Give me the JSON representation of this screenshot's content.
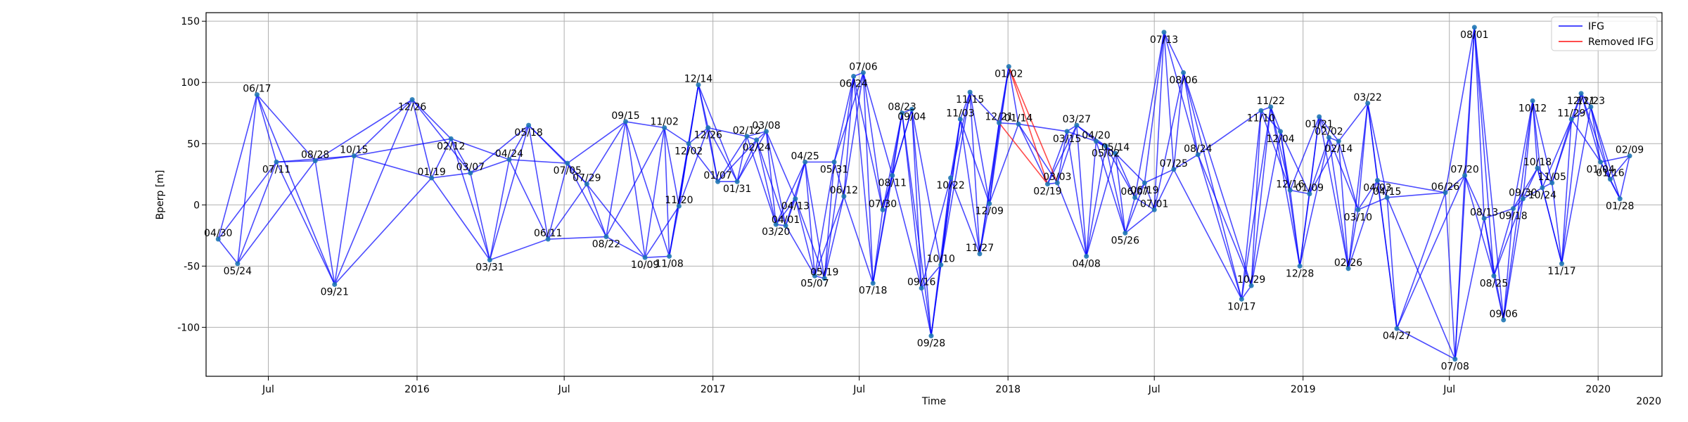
{
  "chart_data": {
    "type": "line",
    "xlabel": "Time",
    "ylabel": "Bperp [m]",
    "grid": true,
    "legend_placement": "top-right",
    "xlim": [
      "2015-04-15",
      "2020-03-20"
    ],
    "ylim": [
      -140,
      157
    ],
    "yticks": [
      -100,
      -50,
      0,
      50,
      100,
      150
    ],
    "xticks": [
      {
        "date": "2015-07-01",
        "label": "Jul"
      },
      {
        "date": "2016-01-01",
        "label": "2016"
      },
      {
        "date": "2016-07-01",
        "label": "Jul"
      },
      {
        "date": "2017-01-01",
        "label": "2017"
      },
      {
        "date": "2017-07-01",
        "label": "Jul"
      },
      {
        "date": "2018-01-01",
        "label": "2018"
      },
      {
        "date": "2018-07-01",
        "label": "Jul"
      },
      {
        "date": "2019-01-01",
        "label": "2019"
      },
      {
        "date": "2019-07-01",
        "label": "Jul"
      },
      {
        "date": "2020-01-01",
        "label": "2020"
      }
    ],
    "axis_offset_label": "2020",
    "series": [
      {
        "name": "IFG",
        "color": "#0000ff"
      },
      {
        "name": "Removed IFG",
        "color": "#ff0000"
      }
    ],
    "acquisitions": [
      {
        "date": "2015-04-30",
        "label": "04/30",
        "bperp": -28
      },
      {
        "date": "2015-05-24",
        "label": "05/24",
        "bperp": -48
      },
      {
        "date": "2015-06-17",
        "label": "06/17",
        "bperp": 90
      },
      {
        "date": "2015-07-11",
        "label": "07/11",
        "bperp": 35
      },
      {
        "date": "2015-08-28",
        "label": "08/28",
        "bperp": 36
      },
      {
        "date": "2015-09-21",
        "label": "09/21",
        "bperp": -65
      },
      {
        "date": "2015-10-15",
        "label": "10/15",
        "bperp": 40
      },
      {
        "date": "2015-12-26",
        "label": "12/26",
        "bperp": 86
      },
      {
        "date": "2016-01-19",
        "label": "01/19",
        "bperp": 22
      },
      {
        "date": "2016-02-12",
        "label": "02/12",
        "bperp": 54
      },
      {
        "date": "2016-03-07",
        "label": "03/07",
        "bperp": 26
      },
      {
        "date": "2016-03-31",
        "label": "03/31",
        "bperp": -45
      },
      {
        "date": "2016-04-24",
        "label": "04/24",
        "bperp": 37
      },
      {
        "date": "2016-05-18",
        "label": "05/18",
        "bperp": 65
      },
      {
        "date": "2016-06-11",
        "label": "06/11",
        "bperp": -28
      },
      {
        "date": "2016-07-05",
        "label": "07/05",
        "bperp": 34
      },
      {
        "date": "2016-07-29",
        "label": "07/29",
        "bperp": 17
      },
      {
        "date": "2016-08-22",
        "label": "08/22",
        "bperp": -26
      },
      {
        "date": "2016-09-15",
        "label": "09/15",
        "bperp": 68
      },
      {
        "date": "2016-10-09",
        "label": "10/09",
        "bperp": -43
      },
      {
        "date": "2016-11-02",
        "label": "11/02",
        "bperp": 63
      },
      {
        "date": "2016-11-08",
        "label": "11/08",
        "bperp": -42
      },
      {
        "date": "2016-11-20",
        "label": "11/20",
        "bperp": -1
      },
      {
        "date": "2016-12-02",
        "label": "12/02",
        "bperp": 50
      },
      {
        "date": "2016-12-14",
        "label": "12/14",
        "bperp": 98
      },
      {
        "date": "2016-12-26",
        "label": "12/26",
        "bperp": 63
      },
      {
        "date": "2017-01-07",
        "label": "01/07",
        "bperp": 19
      },
      {
        "date": "2017-01-31",
        "label": "01/31",
        "bperp": 19
      },
      {
        "date": "2017-02-12",
        "label": "02/12",
        "bperp": 56
      },
      {
        "date": "2017-02-24",
        "label": "02/24",
        "bperp": 53
      },
      {
        "date": "2017-03-08",
        "label": "03/08",
        "bperp": 60
      },
      {
        "date": "2017-03-20",
        "label": "03/20",
        "bperp": -16
      },
      {
        "date": "2017-04-01",
        "label": "04/01",
        "bperp": -17
      },
      {
        "date": "2017-04-13",
        "label": "04/13",
        "bperp": 5
      },
      {
        "date": "2017-04-25",
        "label": "04/25",
        "bperp": 35
      },
      {
        "date": "2017-05-07",
        "label": "05/07",
        "bperp": -58
      },
      {
        "date": "2017-05-19",
        "label": "05/19",
        "bperp": -60
      },
      {
        "date": "2017-05-31",
        "label": "05/31",
        "bperp": 35
      },
      {
        "date": "2017-06-12",
        "label": "06/12",
        "bperp": 7
      },
      {
        "date": "2017-06-24",
        "label": "06/24",
        "bperp": 105
      },
      {
        "date": "2017-07-06",
        "label": "07/06",
        "bperp": 108
      },
      {
        "date": "2017-07-18",
        "label": "07/18",
        "bperp": -64
      },
      {
        "date": "2017-07-30",
        "label": "07/30",
        "bperp": -4
      },
      {
        "date": "2017-08-11",
        "label": "08/11",
        "bperp": 24
      },
      {
        "date": "2017-08-23",
        "label": "08/23",
        "bperp": 75
      },
      {
        "date": "2017-09-04",
        "label": "09/04",
        "bperp": 78
      },
      {
        "date": "2017-09-16",
        "label": "09/16",
        "bperp": -68
      },
      {
        "date": "2017-09-28",
        "label": "09/28",
        "bperp": -107
      },
      {
        "date": "2017-10-10",
        "label": "10/10",
        "bperp": -49
      },
      {
        "date": "2017-10-22",
        "label": "10/22",
        "bperp": 22
      },
      {
        "date": "2017-11-03",
        "label": "11/03",
        "bperp": 70
      },
      {
        "date": "2017-11-15",
        "label": "11/15",
        "bperp": 92
      },
      {
        "date": "2017-11-27",
        "label": "11/27",
        "bperp": -40
      },
      {
        "date": "2017-12-09",
        "label": "12/09",
        "bperp": 1
      },
      {
        "date": "2017-12-21",
        "label": "12/21",
        "bperp": 67
      },
      {
        "date": "2018-01-02",
        "label": "01/02",
        "bperp": 113
      },
      {
        "date": "2018-01-14",
        "label": "01/14",
        "bperp": 66
      },
      {
        "date": "2018-02-19",
        "label": "02/19",
        "bperp": 17
      },
      {
        "date": "2018-03-03",
        "label": "03/03",
        "bperp": 18
      },
      {
        "date": "2018-03-15",
        "label": "03/15",
        "bperp": 60
      },
      {
        "date": "2018-03-27",
        "label": "03/27",
        "bperp": 65
      },
      {
        "date": "2018-04-08",
        "label": "04/08",
        "bperp": -42
      },
      {
        "date": "2018-04-20",
        "label": "04/20",
        "bperp": 52
      },
      {
        "date": "2018-05-02",
        "label": "05/02",
        "bperp": 48
      },
      {
        "date": "2018-05-14",
        "label": "05/14",
        "bperp": 42
      },
      {
        "date": "2018-05-26",
        "label": "05/26",
        "bperp": -23
      },
      {
        "date": "2018-06-07",
        "label": "06/07",
        "bperp": 6
      },
      {
        "date": "2018-06-19",
        "label": "06/19",
        "bperp": 18
      },
      {
        "date": "2018-07-01",
        "label": "07/01",
        "bperp": -4
      },
      {
        "date": "2018-07-13",
        "label": "07/13",
        "bperp": 141
      },
      {
        "date": "2018-07-25",
        "label": "07/25",
        "bperp": 29
      },
      {
        "date": "2018-08-06",
        "label": "08/06",
        "bperp": 108
      },
      {
        "date": "2018-08-24",
        "label": "08/24",
        "bperp": 41
      },
      {
        "date": "2018-10-17",
        "label": "10/17",
        "bperp": -77
      },
      {
        "date": "2018-10-29",
        "label": "10/29",
        "bperp": -66
      },
      {
        "date": "2018-11-10",
        "label": "11/10",
        "bperp": 77
      },
      {
        "date": "2018-11-22",
        "label": "11/22",
        "bperp": 80
      },
      {
        "date": "2018-12-04",
        "label": "12/04",
        "bperp": 60
      },
      {
        "date": "2018-12-16",
        "label": "12/16",
        "bperp": 12
      },
      {
        "date": "2018-12-28",
        "label": "12/28",
        "bperp": -50
      },
      {
        "date": "2019-01-09",
        "label": "01/09",
        "bperp": 9
      },
      {
        "date": "2019-01-21",
        "label": "01/21",
        "bperp": 72
      },
      {
        "date": "2019-02-02",
        "label": "02/02",
        "bperp": 55
      },
      {
        "date": "2019-02-14",
        "label": "02/14",
        "bperp": 52
      },
      {
        "date": "2019-02-26",
        "label": "02/26",
        "bperp": -52
      },
      {
        "date": "2019-03-10",
        "label": "03/10",
        "bperp": -4
      },
      {
        "date": "2019-03-22",
        "label": "03/22",
        "bperp": 83
      },
      {
        "date": "2019-04-03",
        "label": "04/03",
        "bperp": 20
      },
      {
        "date": "2019-04-15",
        "label": "04/15",
        "bperp": 6
      },
      {
        "date": "2019-04-27",
        "label": "04/27",
        "bperp": -101
      },
      {
        "date": "2019-06-26",
        "label": "06/26",
        "bperp": 10
      },
      {
        "date": "2019-07-08",
        "label": "07/08",
        "bperp": -126
      },
      {
        "date": "2019-07-20",
        "label": "07/20",
        "bperp": 24
      },
      {
        "date": "2019-08-01",
        "label": "08/01",
        "bperp": 145
      },
      {
        "date": "2019-08-13",
        "label": "08/13",
        "bperp": -11
      },
      {
        "date": "2019-08-25",
        "label": "08/25",
        "bperp": -58
      },
      {
        "date": "2019-09-06",
        "label": "09/06",
        "bperp": -94
      },
      {
        "date": "2019-09-18",
        "label": "09/18",
        "bperp": -3
      },
      {
        "date": "2019-09-30",
        "label": "09/30",
        "bperp": 5
      },
      {
        "date": "2019-10-12",
        "label": "10/12",
        "bperp": 85
      },
      {
        "date": "2019-10-18",
        "label": "10/18",
        "bperp": 30
      },
      {
        "date": "2019-10-24",
        "label": "10/24",
        "bperp": 14
      },
      {
        "date": "2019-11-05",
        "label": "11/05",
        "bperp": 18
      },
      {
        "date": "2019-11-17",
        "label": "11/17",
        "bperp": -48
      },
      {
        "date": "2019-11-29",
        "label": "11/29",
        "bperp": 70
      },
      {
        "date": "2019-12-11",
        "label": "12/11",
        "bperp": 91
      },
      {
        "date": "2019-12-23",
        "label": "12/23",
        "bperp": 80
      },
      {
        "date": "2020-01-04",
        "label": "01/04",
        "bperp": 35
      },
      {
        "date": "2020-01-16",
        "label": "01/16",
        "bperp": 21
      },
      {
        "date": "2020-01-28",
        "label": "01/28",
        "bperp": 5
      },
      {
        "date": "2020-02-09",
        "label": "02/09",
        "bperp": 40
      }
    ],
    "removed_ifg": [
      [
        "2018-01-02",
        "2018-02-19"
      ],
      [
        "2018-01-02",
        "2018-03-03"
      ],
      [
        "2017-12-21",
        "2018-02-19"
      ]
    ]
  }
}
